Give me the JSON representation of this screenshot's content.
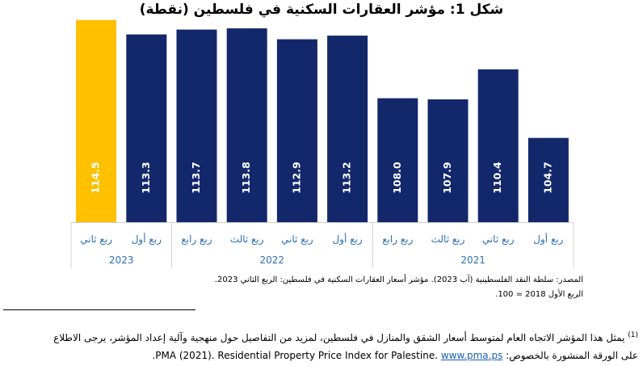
{
  "title": "شكل 1: مؤشر العقارات السكنية في فلسطين (نقطة)",
  "chart_data": {
    "type": "bar",
    "title": "شكل 1: مؤشر العقارات السكنية في فلسطين (نقطة)",
    "categories": [
      "ربع أول",
      "ربع ثاني",
      "ربع ثالث",
      "ربع رابع",
      "ربع أول",
      "ربع ثاني",
      "ربع ثالث",
      "ربع رابع",
      "ربع أول",
      "ربع ثاني"
    ],
    "years": [
      {
        "label": "2021",
        "count": 4
      },
      {
        "label": "2022",
        "count": 4
      },
      {
        "label": "2023",
        "count": 2
      }
    ],
    "values": [
      104.7,
      110.4,
      107.9,
      108.0,
      113.2,
      112.9,
      113.8,
      113.7,
      113.3,
      114.5
    ],
    "value_labels": [
      "104.7",
      "110.4",
      "107.9",
      "108.0",
      "113.2",
      "112.9",
      "113.8",
      "113.7",
      "113.3",
      "114.5"
    ],
    "highlight_index": 9,
    "colors": {
      "default": "#13276b",
      "highlight": "#ffc000"
    },
    "xlabel": "",
    "ylabel": "",
    "grid": false,
    "order": "right-to-left"
  },
  "source_line1": "المصدر: سلطة النقد الفلسطينية (آب 2023). مؤشر أسعار العقارات السكنية في فلسطين: الربع الثاني 2023.",
  "source_line2": "الربع الأول 2018 = 100.",
  "footnote": {
    "marker": "(1)",
    "line1": "يمثل هذا المؤشر الاتجاه العام لمتوسط أسعار الشقق والمنازل في فلسطين، لمزيد من التفاصيل حول منهجية وآلية إعداد المؤشر، يرجى الاطلاع",
    "line2_prefix": "على الورقة المنشورة بالخصوص:",
    "link": "www.pma.ps",
    "line2_suffix": ".PMA (2021). Residential Property Price Index for Palestine."
  }
}
